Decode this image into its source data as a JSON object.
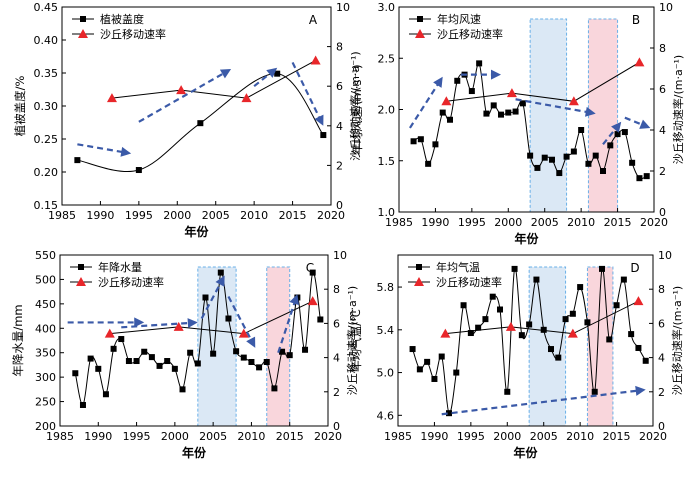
{
  "chart_data": [
    {
      "panel": "A",
      "type": "line",
      "xlabel": "年份",
      "ylabel": "植被盖度/%",
      "y2label": "沙丘移动速率/(m·a⁻¹)",
      "xlim": [
        1985,
        2020
      ],
      "ylim": [
        0.15,
        0.45
      ],
      "y2lim": [
        0,
        10
      ],
      "xticks": [
        1985,
        1990,
        1995,
        2000,
        2005,
        2010,
        2015,
        2020
      ],
      "yticks": [
        "0.15",
        "0.20",
        "0.25",
        "0.30",
        "0.35",
        "0.40",
        "0.45"
      ],
      "y2ticks": [
        "0",
        "2",
        "4",
        "6",
        "8",
        "10"
      ],
      "legend": {
        "position": "top-left",
        "entries": [
          "植被盖度",
          "沙丘移动速率"
        ]
      },
      "series": [
        {
          "name": "植被盖度",
          "axis": "left",
          "marker": "square",
          "smooth": true,
          "x": [
            1987,
            1995,
            2003,
            2013,
            2019
          ],
          "y": [
            0.218,
            0.203,
            0.274,
            0.349,
            0.256
          ]
        },
        {
          "name": "沙丘移动速率",
          "axis": "right",
          "marker": "triangle",
          "x": [
            1991.5,
            2000.5,
            2009,
            2018
          ],
          "y": [
            5.4,
            5.8,
            5.4,
            7.3
          ]
        }
      ],
      "arrows": [
        {
          "from": [
            1987,
            0.242
          ],
          "to": [
            1994,
            0.228
          ]
        },
        {
          "from": [
            1995,
            0.276
          ],
          "to": [
            2007,
            0.356
          ]
        },
        {
          "from": [
            2010,
            0.33
          ],
          "to": [
            2013,
            0.358
          ]
        },
        {
          "from": [
            2015,
            0.366
          ],
          "to": [
            2019,
            0.27
          ]
        }
      ],
      "shaded": []
    },
    {
      "panel": "B",
      "type": "line",
      "xlabel": "年份",
      "ylabel": "年均风速/(m·s⁻¹)",
      "y2label": "沙丘移动速率/(m·a⁻¹)",
      "xlim": [
        1985,
        2020
      ],
      "ylim": [
        1.0,
        3.0
      ],
      "y2lim": [
        0,
        10
      ],
      "xticks": [
        1985,
        1990,
        1995,
        2000,
        2005,
        2010,
        2015,
        2020
      ],
      "yticks": [
        "1.0",
        "1.5",
        "2.0",
        "2.5",
        "3.0"
      ],
      "y2ticks": [
        "0",
        "2",
        "4",
        "6",
        "8",
        "10"
      ],
      "legend": {
        "position": "top-left",
        "entries": [
          "年均风速",
          "沙丘移动速率"
        ]
      },
      "series": [
        {
          "name": "年均风速",
          "axis": "left",
          "marker": "square",
          "x": [
            1987,
            1988,
            1989,
            1990,
            1991,
            1992,
            1993,
            1994,
            1995,
            1996,
            1997,
            1998,
            1999,
            2000,
            2001,
            2002,
            2003,
            2004,
            2005,
            2006,
            2007,
            2008,
            2009,
            2010,
            2011,
            2012,
            2013,
            2014,
            2015,
            2016,
            2017,
            2018,
            2019
          ],
          "y": [
            1.69,
            1.71,
            1.47,
            1.66,
            1.97,
            1.9,
            2.28,
            2.34,
            2.18,
            2.45,
            1.96,
            2.04,
            1.95,
            1.97,
            1.98,
            2.06,
            1.55,
            1.43,
            1.53,
            1.51,
            1.38,
            1.54,
            1.59,
            1.8,
            1.47,
            1.55,
            1.4,
            1.65,
            1.76,
            1.78,
            1.48,
            1.33,
            1.35
          ]
        },
        {
          "name": "沙丘移动速率",
          "axis": "right",
          "marker": "triangle",
          "x": [
            1991.5,
            2000.5,
            2009,
            2018
          ],
          "y": [
            5.4,
            5.8,
            5.4,
            7.3
          ]
        }
      ],
      "arrows": [
        {
          "from": [
            1986.5,
            1.82
          ],
          "to": [
            1991,
            2.32
          ]
        },
        {
          "from": [
            1993.5,
            2.34
          ],
          "to": [
            1999,
            2.34
          ]
        },
        {
          "from": [
            2001,
            2.1
          ],
          "to": [
            2012,
            1.96
          ]
        },
        {
          "from": [
            2013,
            1.66
          ],
          "to": [
            2015.5,
            1.88
          ]
        },
        {
          "from": [
            2016,
            1.92
          ],
          "to": [
            2019.5,
            1.82
          ]
        }
      ],
      "shaded": [
        {
          "x0": 2003,
          "x1": 2008,
          "color": "#dbe8f5",
          "border": "#6ab0e8"
        },
        {
          "x0": 2011,
          "x1": 2015,
          "color": "#f9d6dc",
          "border": "#6ab0e8"
        }
      ]
    },
    {
      "panel": "C",
      "type": "line",
      "xlabel": "年份",
      "ylabel": "年降水量/mm",
      "y2label": "沙丘移动速率/(m·a⁻¹)",
      "xlim": [
        1985,
        2020
      ],
      "ylim": [
        200,
        550
      ],
      "y2lim": [
        0,
        10
      ],
      "xticks": [
        1985,
        1990,
        1995,
        2000,
        2005,
        2010,
        2015,
        2020
      ],
      "yticks": [
        "200",
        "250",
        "300",
        "350",
        "400",
        "450",
        "500",
        "550"
      ],
      "y2ticks": [
        "0",
        "2",
        "4",
        "6",
        "8",
        "10"
      ],
      "legend": {
        "position": "top-left",
        "entries": [
          "年降水量",
          "沙丘移动速率"
        ]
      },
      "series": [
        {
          "name": "年降水量",
          "axis": "left",
          "marker": "square",
          "x": [
            1987,
            1988,
            1989,
            1990,
            1991,
            1992,
            1993,
            1994,
            1995,
            1996,
            1997,
            1998,
            1999,
            2000,
            2001,
            2002,
            2003,
            2004,
            2005,
            2006,
            2007,
            2008,
            2009,
            2010,
            2011,
            2012,
            2013,
            2014,
            2015,
            2016,
            2017,
            2018,
            2019
          ],
          "y": [
            308,
            243,
            338,
            317,
            265,
            358,
            378,
            333,
            333,
            352,
            341,
            323,
            333,
            317,
            275,
            350,
            328,
            463,
            348,
            514,
            420,
            353,
            340,
            331,
            320,
            331,
            277,
            352,
            345,
            463,
            356,
            514,
            418
          ]
        },
        {
          "name": "沙丘移动速率",
          "axis": "right",
          "marker": "triangle",
          "x": [
            1991.5,
            2000.5,
            2009,
            2018
          ],
          "y": [
            5.4,
            5.8,
            5.4,
            7.3
          ]
        }
      ],
      "arrows": [
        {
          "from": [
            1986,
            412
          ],
          "to": [
            1996,
            412
          ]
        },
        {
          "from": [
            1993,
            402
          ],
          "to": [
            2003,
            412
          ]
        },
        {
          "from": [
            2003.5,
            420
          ],
          "to": [
            2006.5,
            508
          ]
        },
        {
          "from": [
            2007,
            465
          ],
          "to": [
            2010.5,
            360
          ]
        },
        {
          "from": [
            2013.5,
            350
          ],
          "to": [
            2016,
            470
          ]
        }
      ],
      "shaded": [
        {
          "x0": 2003,
          "x1": 2008,
          "color": "#dbe8f5",
          "border": "#6ab0e8"
        },
        {
          "x0": 2012,
          "x1": 2015,
          "color": "#f9d6dc",
          "border": "#6ab0e8"
        }
      ]
    },
    {
      "panel": "D",
      "type": "line",
      "xlabel": "年份",
      "ylabel": "年均气温/℃",
      "y2label": "沙丘移动速率/(m·a⁻¹)",
      "xlim": [
        1985,
        2020
      ],
      "ylim": [
        4.5,
        6.1
      ],
      "y2lim": [
        0,
        10
      ],
      "xticks": [
        1985,
        1990,
        1995,
        2000,
        2005,
        2010,
        2015,
        2020
      ],
      "yticks": [
        "4.6",
        "5.0",
        "5.4",
        "5.8"
      ],
      "y2ticks": [
        "0",
        "2",
        "4",
        "6",
        "8",
        "10"
      ],
      "legend": {
        "position": "top-left",
        "entries": [
          "年均气温",
          "沙丘移动速率"
        ]
      },
      "series": [
        {
          "name": "年均气温",
          "axis": "left",
          "marker": "square",
          "x": [
            1987,
            1988,
            1989,
            1990,
            1991,
            1992,
            1993,
            1994,
            1995,
            1996,
            1997,
            1998,
            1999,
            2000,
            2001,
            2002,
            2003,
            2004,
            2005,
            2006,
            2007,
            2008,
            2009,
            2010,
            2011,
            2012,
            2013,
            2014,
            2015,
            2016,
            2017,
            2018,
            2019
          ],
          "y": [
            5.22,
            5.03,
            5.1,
            4.94,
            5.15,
            4.62,
            5.0,
            5.63,
            5.37,
            5.42,
            5.5,
            5.71,
            5.59,
            4.82,
            5.97,
            5.35,
            5.45,
            5.87,
            5.4,
            5.22,
            5.14,
            5.5,
            5.55,
            5.8,
            5.47,
            4.82,
            5.97,
            5.31,
            5.63,
            5.87,
            5.36,
            5.23,
            5.11
          ]
        },
        {
          "name": "沙丘移动速率",
          "axis": "right",
          "marker": "triangle",
          "x": [
            1991.5,
            2000.5,
            2009,
            2018
          ],
          "y": [
            5.4,
            5.8,
            5.4,
            7.3
          ]
        }
      ],
      "arrows": [
        {
          "from": [
            1991,
            4.61
          ],
          "to": [
            2019,
            4.84
          ]
        }
      ],
      "shaded": [
        {
          "x0": 2003,
          "x1": 2008,
          "color": "#dbe8f5",
          "border": "#6ab0e8"
        },
        {
          "x0": 2011,
          "x1": 2014.5,
          "color": "#f9d6dc",
          "border": "#6ab0e8"
        }
      ]
    }
  ],
  "colors": {
    "vegetation_line": "#000000",
    "dune_rate": "#e8262a",
    "arrow": "#3b5aa8"
  }
}
